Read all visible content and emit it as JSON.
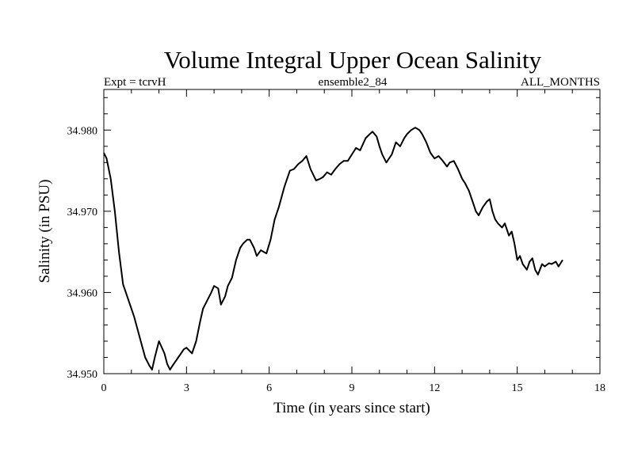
{
  "chart_data": {
    "type": "line",
    "title": "Volume Integral Upper Ocean Salinity",
    "subtitle_left": "Expt = tcrvH",
    "subtitle_center": "ensemble2_84",
    "subtitle_right": "ALL_MONTHS",
    "xlabel": "Time (in years since start)",
    "ylabel": "Salinity (in PSU)",
    "xlim": [
      0,
      18
    ],
    "ylim": [
      34.95,
      34.985
    ],
    "xticks": [
      0,
      3,
      6,
      9,
      12,
      15,
      18
    ],
    "xtick_labels": [
      "0",
      "3",
      "6",
      "9",
      "12",
      "15",
      "18"
    ],
    "yticks": [
      34.95,
      34.96,
      34.97,
      34.98
    ],
    "ytick_labels": [
      "34.950",
      "34.960",
      "34.970",
      "34.980"
    ],
    "series": [
      {
        "name": "Salinity",
        "color": "#000000",
        "x": [
          0.0,
          0.1,
          0.25,
          0.4,
          0.55,
          0.7,
          0.9,
          1.1,
          1.3,
          1.5,
          1.65,
          1.75,
          1.85,
          2.0,
          2.2,
          2.3,
          2.4,
          2.5,
          2.6,
          2.7,
          2.8,
          2.9,
          3.0,
          3.2,
          3.35,
          3.5,
          3.6,
          3.75,
          3.9,
          4.0,
          4.15,
          4.25,
          4.4,
          4.5,
          4.65,
          4.8,
          4.95,
          5.05,
          5.2,
          5.3,
          5.45,
          5.55,
          5.7,
          5.8,
          5.9,
          6.05,
          6.2,
          6.35,
          6.55,
          6.75,
          6.9,
          7.05,
          7.2,
          7.35,
          7.5,
          7.7,
          7.85,
          7.95,
          8.1,
          8.25,
          8.4,
          8.55,
          8.7,
          8.85,
          9.0,
          9.15,
          9.3,
          9.5,
          9.65,
          9.75,
          9.9,
          10.0,
          10.1,
          10.25,
          10.35,
          10.45,
          10.6,
          10.75,
          10.9,
          11.0,
          11.15,
          11.3,
          11.45,
          11.55,
          11.7,
          11.85,
          12.0,
          12.15,
          12.3,
          12.45,
          12.55,
          12.7,
          12.85,
          13.0,
          13.1,
          13.25,
          13.35,
          13.5,
          13.6,
          13.75,
          13.9,
          14.0,
          14.1,
          14.2,
          14.3,
          14.45,
          14.55,
          14.7,
          14.8,
          14.9,
          15.0,
          15.1,
          15.2,
          15.35,
          15.45,
          15.55,
          15.65,
          15.75,
          15.9,
          16.0,
          16.15,
          16.25,
          16.4,
          16.5,
          16.65
        ],
        "values": [
          34.9772,
          34.9765,
          34.974,
          34.97,
          34.965,
          34.961,
          34.959,
          34.957,
          34.9545,
          34.952,
          34.951,
          34.9505,
          34.952,
          34.954,
          34.9525,
          34.9512,
          34.9505,
          34.951,
          34.9515,
          34.952,
          34.9525,
          34.953,
          34.9532,
          34.9525,
          34.954,
          34.9565,
          34.958,
          34.959,
          34.96,
          34.9608,
          34.9605,
          34.9585,
          34.9595,
          34.9608,
          34.9618,
          34.964,
          34.9655,
          34.966,
          34.9665,
          34.9665,
          34.9655,
          34.9645,
          34.9652,
          34.965,
          34.9648,
          34.9665,
          34.969,
          34.9705,
          34.973,
          34.975,
          34.9752,
          34.9758,
          34.9762,
          34.9768,
          34.9752,
          34.9738,
          34.974,
          34.9742,
          34.9748,
          34.9745,
          34.9752,
          34.9758,
          34.9762,
          34.9762,
          34.977,
          34.9778,
          34.9775,
          34.979,
          34.9795,
          34.9798,
          34.9792,
          34.978,
          34.977,
          34.976,
          34.9765,
          34.977,
          34.9785,
          34.978,
          34.979,
          34.9795,
          34.98,
          34.9803,
          34.98,
          34.9795,
          34.9785,
          34.9772,
          34.9765,
          34.9768,
          34.9762,
          34.9755,
          34.976,
          34.9762,
          34.9752,
          34.974,
          34.9735,
          34.9725,
          34.9715,
          34.97,
          34.9695,
          34.9705,
          34.9712,
          34.9715,
          34.97,
          34.969,
          34.9685,
          34.968,
          34.9685,
          34.967,
          34.9675,
          34.966,
          34.964,
          34.9645,
          34.9635,
          34.9628,
          34.9638,
          34.9642,
          34.9628,
          34.9622,
          34.9635,
          34.9632,
          34.9636,
          34.9635,
          34.9638,
          34.9632,
          34.964
        ]
      }
    ]
  }
}
